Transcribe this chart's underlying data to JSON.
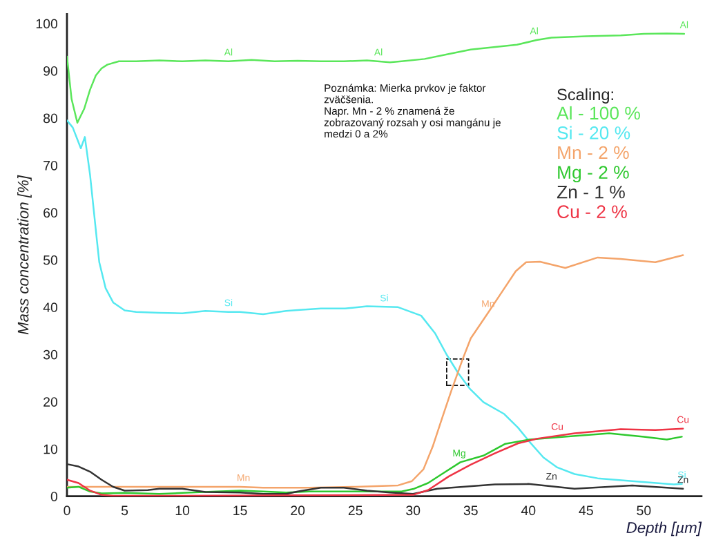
{
  "chart_data": {
    "type": "line",
    "xlabel": "Depth [µm]",
    "ylabel": "Mass concentration [%]",
    "legend_title": "Scaling:",
    "legend": "top right",
    "grid": false,
    "xlim": [
      0,
      55
    ],
    "ylim": [
      0,
      102
    ],
    "xticks": [
      0,
      5,
      10,
      15,
      20,
      25,
      30,
      35,
      40,
      45,
      50
    ],
    "yticks": [
      0,
      10,
      20,
      30,
      40,
      50,
      60,
      70,
      80,
      90,
      100
    ],
    "series": [
      {
        "name": "Al - 100 %",
        "color": "#5ae65a",
        "x": [
          0,
          0.4,
          0.9,
          1.5,
          2,
          2.5,
          3,
          3.5,
          4.5,
          6,
          8,
          10,
          12,
          14,
          16,
          18,
          20,
          22,
          24,
          26,
          28,
          29,
          31,
          33,
          35,
          37,
          39,
          40.7,
          42,
          45,
          48,
          50,
          52,
          53.5
        ],
        "values": [
          93,
          84,
          79,
          82,
          86,
          89,
          90.5,
          91.3,
          92,
          92,
          92.2,
          92,
          92.2,
          92,
          92.3,
          92,
          92.1,
          92,
          92,
          92.2,
          91.8,
          92,
          92.5,
          93.5,
          94.5,
          95,
          95.5,
          96.5,
          97,
          97.3,
          97.5,
          97.8,
          97.9,
          97.8
        ]
      },
      {
        "name": "Si - 20 %",
        "color": "#55e8f0",
        "x": [
          0,
          0.5,
          1.2,
          1.55,
          2,
          2.6,
          2.8,
          3.35,
          4,
          5,
          6,
          8,
          10,
          12,
          14,
          15,
          17,
          19,
          20,
          22,
          24.1,
          26,
          28.7,
          30.7,
          31.9,
          32.9,
          33.9,
          34.9,
          36.1,
          37.9,
          39.1,
          40.1,
          41.3,
          42.5,
          44,
          46,
          49,
          52.6,
          53.3
        ],
        "values": [
          79.5,
          78,
          73.6,
          76,
          68,
          54,
          49.5,
          44,
          41,
          39.3,
          39,
          38.8,
          38.7,
          39.2,
          39,
          39,
          38.5,
          39.2,
          39.4,
          39.7,
          39.7,
          40.2,
          40,
          38.2,
          34.5,
          30,
          26.1,
          22.8,
          19.9,
          17.4,
          14.5,
          11.5,
          8.2,
          6.1,
          4.7,
          3.8,
          3.2,
          2.5,
          2.6
        ]
      },
      {
        "name": "Mn - 2 %",
        "color": "#f4a46a",
        "x": [
          0,
          5,
          10,
          15,
          17,
          21,
          25,
          28.7,
          29.9,
          30.9,
          31.7,
          32.5,
          33.3,
          34.3,
          35,
          36.5,
          37.7,
          38.9,
          39.8,
          41,
          43.2,
          46,
          48,
          51,
          53.4
        ],
        "values": [
          2,
          2,
          2,
          2,
          1.8,
          1.8,
          2,
          2.3,
          3.2,
          5.7,
          10.5,
          16.4,
          22.2,
          29,
          33.4,
          38.8,
          43.2,
          47.6,
          49.5,
          49.6,
          48.3,
          50.5,
          50.2,
          49.5,
          51
        ]
      },
      {
        "name": "Mg - 2 %",
        "color": "#2ec82e",
        "x": [
          0,
          1,
          2,
          3,
          5,
          8,
          10,
          13,
          15,
          17,
          19,
          21,
          24,
          27,
          29,
          30.1,
          31.3,
          32.5,
          34.1,
          36.1,
          38,
          40.1,
          43.1,
          47,
          50,
          52,
          53.3
        ],
        "values": [
          1.8,
          2,
          1,
          0.6,
          0.7,
          0.5,
          0.7,
          1,
          1.2,
          1,
          0.8,
          1,
          1,
          1,
          1,
          1.6,
          2.8,
          4.7,
          7.2,
          8.6,
          11.1,
          12,
          12.6,
          13.3,
          12.6,
          12,
          12.6
        ]
      },
      {
        "name": "Zn - 1 %",
        "color": "#333333",
        "x": [
          0,
          1,
          2,
          3,
          4,
          5,
          7,
          8,
          10,
          12,
          15,
          17,
          19,
          20,
          22,
          24,
          26,
          28,
          30,
          32.1,
          37.1,
          40,
          44,
          49,
          53.4
        ],
        "values": [
          6.8,
          6.3,
          5.2,
          3.5,
          2,
          1.2,
          1.3,
          1.6,
          1.6,
          0.9,
          0.8,
          0.5,
          0.5,
          1,
          1.8,
          1.8,
          1.2,
          0.8,
          0.5,
          1.6,
          2.5,
          2.6,
          1.6,
          2.3,
          1.6
        ]
      },
      {
        "name": "Cu - 2 %",
        "color": "#ee3344",
        "x": [
          0,
          1,
          2,
          3,
          4,
          10,
          20,
          30,
          31.3,
          33.1,
          35,
          37.1,
          39.1,
          40.8,
          44,
          48,
          51,
          53.4
        ],
        "values": [
          3.5,
          2.8,
          1.2,
          0.3,
          0.1,
          0.1,
          0.2,
          0.3,
          1.3,
          4.2,
          6.7,
          9.1,
          11.2,
          12.2,
          13.3,
          14.2,
          14,
          14.3
        ]
      }
    ],
    "annotations": [
      "Poznámka: Mierka prvkov je faktor\nzväčšenia.\nNapr. Mn - 2 % znamená že\nzobrazovaný rozsah y osi mangánu je\nmedzi 0 a 2%",
      {
        "text": "Al",
        "x": 14,
        "y": 92
      },
      {
        "text": "Al",
        "x": 27,
        "y": 92
      },
      {
        "text": "Al",
        "x": 40.5,
        "y": 96.5
      },
      {
        "text": "Al",
        "x": 53.5,
        "y": 97.8
      },
      {
        "text": "Si",
        "x": 14,
        "y": 39
      },
      {
        "text": "Si",
        "x": 27.5,
        "y": 40
      },
      {
        "text": "Si",
        "x": 53.3,
        "y": 2.6
      },
      {
        "text": "Mn",
        "x": 15.3,
        "y": 2
      },
      {
        "text": "Mn",
        "x": 36.5,
        "y": 38.8
      },
      {
        "text": "Mg",
        "x": 34,
        "y": 7.2
      },
      {
        "text": "Zn",
        "x": 42,
        "y": 2.3
      },
      {
        "text": "Zn",
        "x": 53.4,
        "y": 1.6
      },
      {
        "text": "Cu",
        "x": 42.5,
        "y": 12.8
      },
      {
        "text": "Cu",
        "x": 53.4,
        "y": 14.3
      }
    ]
  }
}
